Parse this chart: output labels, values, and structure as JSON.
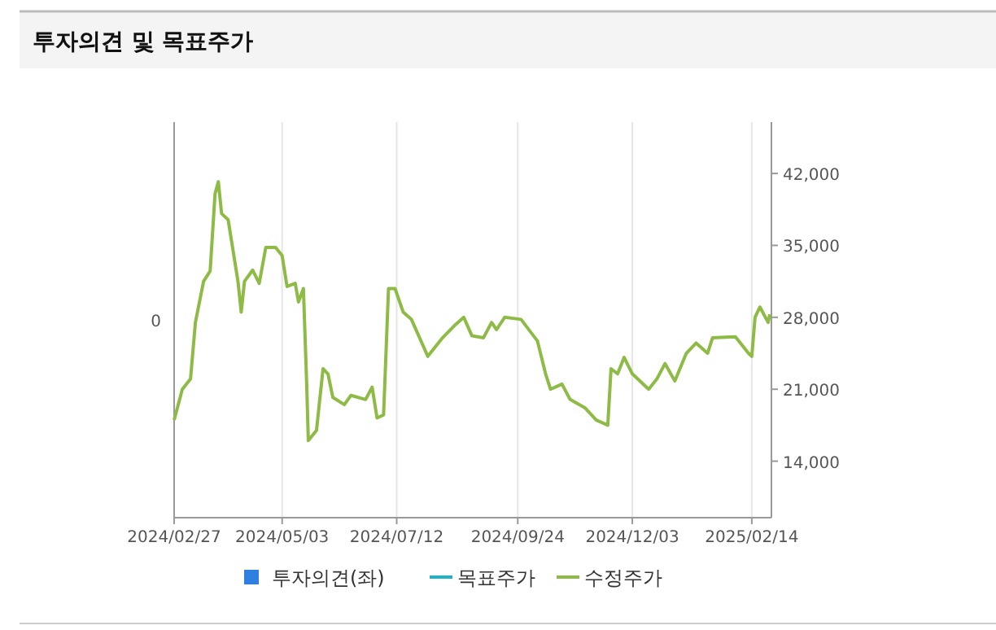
{
  "chart_data": {
    "type": "line",
    "title": "투자의견 및 목표주가",
    "xlim": [
      "2024-02-27",
      "2025-02-26"
    ],
    "xticks": [
      {
        "value": "2024-02-27",
        "label": "2024/02/27"
      },
      {
        "value": "2024-05-03",
        "label": "2024/05/03"
      },
      {
        "value": "2024-07-12",
        "label": "2024/07/12"
      },
      {
        "value": "2024-09-24",
        "label": "2024/09/24"
      },
      {
        "value": "2024-12-03",
        "label": "2024/12/03"
      },
      {
        "value": "2025-02-14",
        "label": "2025/02/14"
      }
    ],
    "annotations": [
      "0"
    ],
    "y2lim": [
      8500,
      47000
    ],
    "y2ticks": [
      {
        "value": 14000,
        "label": "14,000"
      },
      {
        "value": 21000,
        "label": "21,000"
      },
      {
        "value": 28000,
        "label": "28,000"
      },
      {
        "value": 35000,
        "label": "35,000"
      },
      {
        "value": 42000,
        "label": "42,000"
      }
    ],
    "grid": "x",
    "legend": "bottom",
    "series": [
      {
        "name": "투자의견(좌)",
        "type": "bar",
        "color": "#2f7fe0"
      },
      {
        "name": "목표주가",
        "type": "line",
        "axis": "y2",
        "color": "#1fb3c9"
      },
      {
        "name": "수정주가",
        "axis": "y2",
        "color": "#8dbb45",
        "x": [
          "2024-02-27",
          "2024-03-03",
          "2024-03-08",
          "2024-03-11",
          "2024-03-16",
          "2024-03-20",
          "2024-03-23",
          "2024-03-25",
          "2024-03-27",
          "2024-03-31",
          "2024-04-06",
          "2024-04-08",
          "2024-04-10",
          "2024-04-15",
          "2024-04-19",
          "2024-04-23",
          "2024-04-29",
          "2024-05-03",
          "2024-05-06",
          "2024-05-11",
          "2024-05-13",
          "2024-05-16",
          "2024-05-18",
          "2024-05-19",
          "2024-05-24",
          "2024-05-28",
          "2024-05-31",
          "2024-06-03",
          "2024-06-10",
          "2024-06-14",
          "2024-06-23",
          "2024-06-27",
          "2024-06-30",
          "2024-07-04",
          "2024-07-07",
          "2024-07-11",
          "2024-07-16",
          "2024-07-21",
          "2024-07-31",
          "2024-08-09",
          "2024-08-17",
          "2024-08-22",
          "2024-08-27",
          "2024-09-03",
          "2024-09-08",
          "2024-09-11",
          "2024-09-16",
          "2024-09-26",
          "2024-10-06",
          "2024-10-11",
          "2024-10-14",
          "2024-10-21",
          "2024-10-26",
          "2024-11-04",
          "2024-11-11",
          "2024-11-18",
          "2024-11-20",
          "2024-11-24",
          "2024-11-28",
          "2024-12-03",
          "2024-12-13",
          "2024-12-18",
          "2024-12-23",
          "2024-12-29",
          "2025-01-05",
          "2025-01-11",
          "2025-01-18",
          "2025-01-21",
          "2025-02-04",
          "2025-02-12",
          "2025-02-14",
          "2025-02-16",
          "2025-02-19",
          "2025-02-24",
          "2025-02-25"
        ],
        "values": [
          18000,
          21000,
          22000,
          27500,
          31500,
          32500,
          40000,
          41200,
          38100,
          37500,
          31500,
          28500,
          31500,
          32600,
          31300,
          34800,
          34800,
          34000,
          31000,
          31300,
          29500,
          30800,
          21500,
          16000,
          17000,
          23000,
          22500,
          20200,
          19500,
          20400,
          20000,
          21200,
          18200,
          18500,
          30800,
          30800,
          28500,
          27800,
          24200,
          26000,
          27300,
          28000,
          26200,
          26000,
          27500,
          26800,
          28000,
          27800,
          25700,
          22500,
          21000,
          21500,
          20000,
          19200,
          18000,
          17500,
          23000,
          22500,
          24100,
          22500,
          21000,
          22000,
          23500,
          21800,
          24500,
          25500,
          24500,
          26000,
          26100,
          24500,
          24200,
          28000,
          29000,
          27500,
          28300
        ]
      }
    ]
  }
}
